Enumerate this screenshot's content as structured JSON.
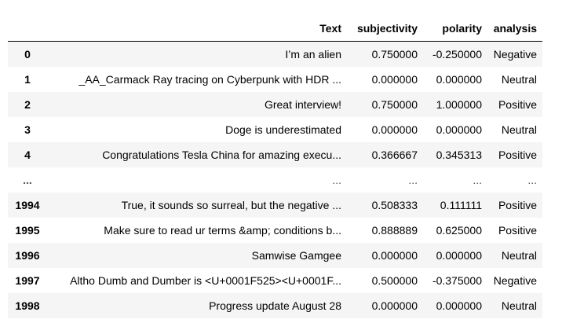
{
  "table": {
    "columns": [
      "Text",
      "subjectivity",
      "polarity",
      "analysis"
    ],
    "rows": [
      {
        "index": "0",
        "text": "I’m an alien",
        "subjectivity": "0.750000",
        "polarity": "-0.250000",
        "analysis": "Negative"
      },
      {
        "index": "1",
        "text": "_AA_Carmack Ray tracing on Cyberpunk with HDR ...",
        "subjectivity": "0.000000",
        "polarity": "0.000000",
        "analysis": "Neutral"
      },
      {
        "index": "2",
        "text": "Great interview!",
        "subjectivity": "0.750000",
        "polarity": "1.000000",
        "analysis": "Positive"
      },
      {
        "index": "3",
        "text": "Doge is underestimated",
        "subjectivity": "0.000000",
        "polarity": "0.000000",
        "analysis": "Neutral"
      },
      {
        "index": "4",
        "text": "Congratulations Tesla China for amazing execu...",
        "subjectivity": "0.366667",
        "polarity": "0.345313",
        "analysis": "Positive"
      },
      {
        "index": "...",
        "text": "...",
        "subjectivity": "...",
        "polarity": "...",
        "analysis": "..."
      },
      {
        "index": "1994",
        "text": "True, it sounds so surreal, but the negative ...",
        "subjectivity": "0.508333",
        "polarity": "0.111111",
        "analysis": "Positive"
      },
      {
        "index": "1995",
        "text": "Make sure to read ur terms &amp; conditions b...",
        "subjectivity": "0.888889",
        "polarity": "0.625000",
        "analysis": "Positive"
      },
      {
        "index": "1996",
        "text": "Samwise Gamgee",
        "subjectivity": "0.000000",
        "polarity": "0.000000",
        "analysis": "Neutral"
      },
      {
        "index": "1997",
        "text": "Altho Dumb and Dumber is <U+0001F525><U+0001F...",
        "subjectivity": "0.500000",
        "polarity": "-0.375000",
        "analysis": "Negative"
      },
      {
        "index": "1998",
        "text": "Progress update August 28",
        "subjectivity": "0.000000",
        "polarity": "0.000000",
        "analysis": "Neutral"
      }
    ]
  },
  "colors": {
    "stripe": "#f5f5f5",
    "header_rule": "#000000",
    "text": "#000000"
  }
}
